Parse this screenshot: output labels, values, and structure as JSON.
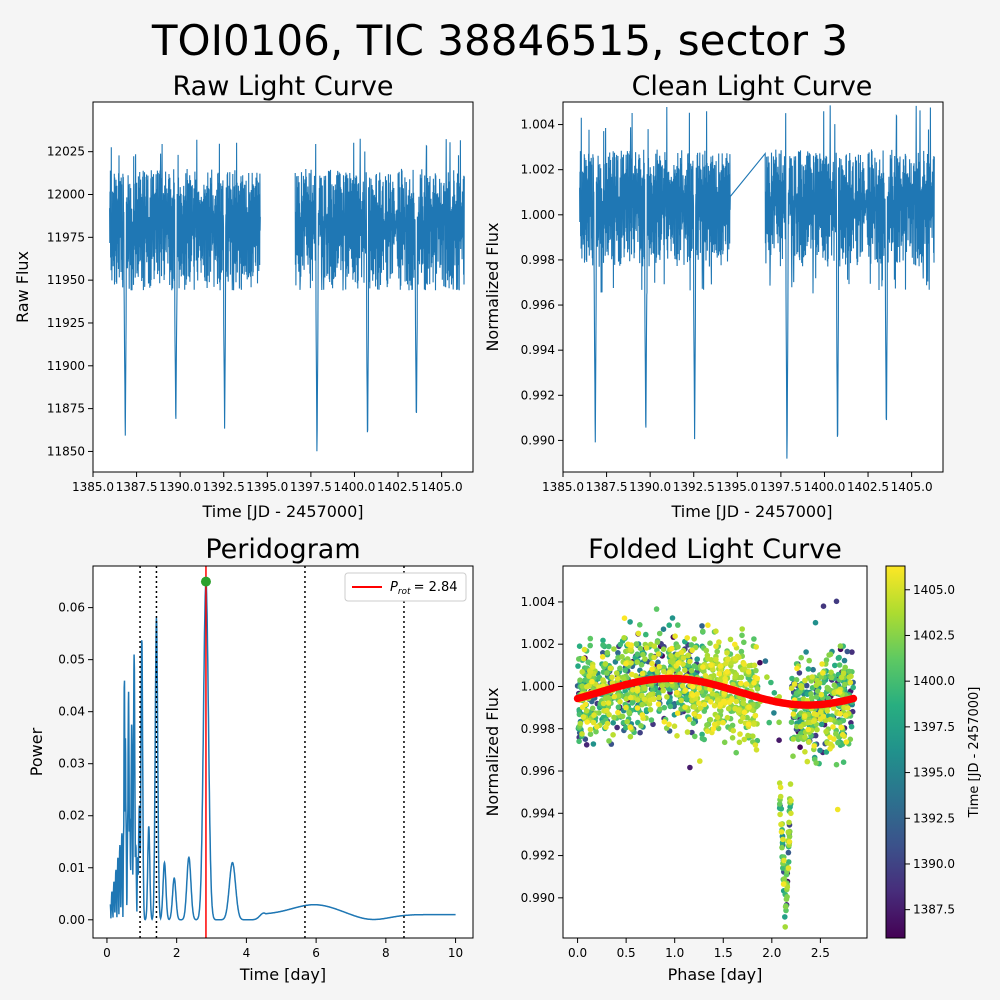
{
  "figure": {
    "suptitle": "TOI0106, TIC 38846515, sector 3"
  },
  "colors": {
    "background": "#f5f5f5",
    "series": "#1f77b4",
    "rotation_line": "#ff0000",
    "peak_marker": "#2ca02c",
    "harmonic_lines": "#000000",
    "model_curve": "#ff0000",
    "colormap": "viridis"
  },
  "chart_data": [
    {
      "id": "raw",
      "type": "line",
      "title": "Raw Light Curve",
      "xlabel": "Time [JD - 2457000]",
      "ylabel": "Raw Flux",
      "xlim": [
        1385.0,
        1406.8
      ],
      "ylim": [
        11838,
        12054
      ],
      "xticks": [
        1385.0,
        1387.5,
        1390.0,
        1392.5,
        1395.0,
        1397.5,
        1400.0,
        1402.5,
        1405.0
      ],
      "yticks": [
        11850,
        11875,
        11900,
        11925,
        11950,
        11975,
        12000,
        12025
      ],
      "tick_decimals": {
        "x": 1,
        "y": 0
      },
      "segments": [
        [
          1385.95,
          1394.6
        ],
        [
          1396.6,
          1406.3
        ]
      ],
      "baseline": 11976,
      "noise_band": [
        11945,
        12015
      ],
      "spikes": {
        "low": 11944,
        "high": 12033
      },
      "transits": [
        {
          "t": 1386.85,
          "min": 11857
        },
        {
          "t": 1389.75,
          "min": 11862
        },
        {
          "t": 1392.55,
          "min": 11863
        },
        {
          "t": 1397.85,
          "min": 11847
        },
        {
          "t": 1400.75,
          "min": 11853
        },
        {
          "t": 1403.55,
          "min": 11865
        }
      ],
      "connect_gap": false
    },
    {
      "id": "clean",
      "type": "line",
      "title": "Clean Light Curve",
      "xlabel": "Time [JD - 2457000]",
      "ylabel": "Normalized Flux",
      "xlim": [
        1385.0,
        1406.8
      ],
      "ylim": [
        0.9886,
        1.005
      ],
      "xticks": [
        1385.0,
        1387.5,
        1390.0,
        1392.5,
        1395.0,
        1397.5,
        1400.0,
        1402.5,
        1405.0
      ],
      "yticks": [
        0.99,
        0.992,
        0.994,
        0.996,
        0.998,
        1.0,
        1.002,
        1.004
      ],
      "tick_decimals": {
        "x": 1,
        "y": 3
      },
      "segments": [
        [
          1385.95,
          1394.6
        ],
        [
          1396.6,
          1406.3
        ]
      ],
      "baseline": 1.0,
      "noise_band": [
        0.9977,
        1.0029
      ],
      "spikes": {
        "low": 0.9965,
        "high": 1.0049
      },
      "transits": [
        {
          "t": 1386.85,
          "min": 0.9897
        },
        {
          "t": 1389.75,
          "min": 0.9899
        },
        {
          "t": 1392.55,
          "min": 0.99
        },
        {
          "t": 1397.85,
          "min": 0.9889
        },
        {
          "t": 1400.75,
          "min": 0.9894
        },
        {
          "t": 1403.55,
          "min": 0.9902
        }
      ],
      "connect_gap": true
    },
    {
      "id": "periodogram",
      "type": "line",
      "title": "Peridogram",
      "xlabel": "Time [day]",
      "ylabel": "Power",
      "xlim": [
        -0.4,
        10.5
      ],
      "ylim": [
        -0.0035,
        0.068
      ],
      "xticks": [
        0,
        2,
        4,
        6,
        8,
        10
      ],
      "yticks": [
        0.0,
        0.01,
        0.02,
        0.03,
        0.04,
        0.05,
        0.06
      ],
      "tick_decimals": {
        "x": 0,
        "y": 2
      },
      "peak_period": 2.84,
      "peak_power": 0.065,
      "harmonics": [
        0.95,
        1.42,
        5.68,
        8.52
      ],
      "legend": {
        "label_math": "P_rot",
        "label_value": "= 2.84",
        "loc": "upper right"
      },
      "peaks": [
        {
          "x": 0.5,
          "y": 0.047
        },
        {
          "x": 0.62,
          "y": 0.044
        },
        {
          "x": 0.78,
          "y": 0.051
        },
        {
          "x": 0.53,
          "y": 0.035
        },
        {
          "x": 0.71,
          "y": 0.038
        },
        {
          "x": 0.93,
          "y": 0.022
        },
        {
          "x": 1.0,
          "y": 0.054
        },
        {
          "x": 1.42,
          "y": 0.058
        },
        {
          "x": 1.2,
          "y": 0.018
        },
        {
          "x": 1.65,
          "y": 0.011
        },
        {
          "x": 1.93,
          "y": 0.008
        },
        {
          "x": 2.35,
          "y": 0.012
        },
        {
          "x": 2.84,
          "y": 0.065
        },
        {
          "x": 3.6,
          "y": 0.011
        },
        {
          "x": 4.5,
          "y": 0.0013
        },
        {
          "x": 5.95,
          "y": 0.0029
        }
      ],
      "tail": [
        {
          "x": 4.2,
          "y": 0.0
        },
        {
          "x": 5.1,
          "y": 0.0
        },
        {
          "x": 7.6,
          "y": 0.0
        },
        {
          "x": 9.0,
          "y": 0.0011
        },
        {
          "x": 10.0,
          "y": 0.001
        }
      ]
    },
    {
      "id": "folded",
      "type": "scatter",
      "title": "Folded Light Curve",
      "xlabel": "Phase [day]",
      "ylabel": "Normalized Flux",
      "xlim": [
        -0.15,
        2.98
      ],
      "ylim": [
        0.9881,
        1.0057
      ],
      "xticks": [
        0.0,
        0.5,
        1.0,
        1.5,
        2.0,
        2.5
      ],
      "yticks": [
        0.99,
        0.992,
        0.994,
        0.996,
        0.998,
        1.0,
        1.002,
        1.004
      ],
      "tick_decimals": {
        "x": 1,
        "y": 3
      },
      "phase_range": [
        0.0,
        2.84
      ],
      "gap_phase": [
        1.86,
        2.07
      ],
      "transit": {
        "center": 2.14,
        "half_width": 0.06,
        "min": 0.9893
      },
      "model": {
        "mean": 0.99975,
        "amplitude": 0.00063,
        "peak_phase": 0.95
      },
      "colorbar": {
        "label": "Time [JD - 2457000]",
        "range": [
          1385.95,
          1406.3
        ],
        "ticks": [
          1387.5,
          1390.0,
          1392.5,
          1395.0,
          1397.5,
          1400.0,
          1402.5,
          1405.0
        ],
        "tick_decimals": 1
      }
    }
  ]
}
